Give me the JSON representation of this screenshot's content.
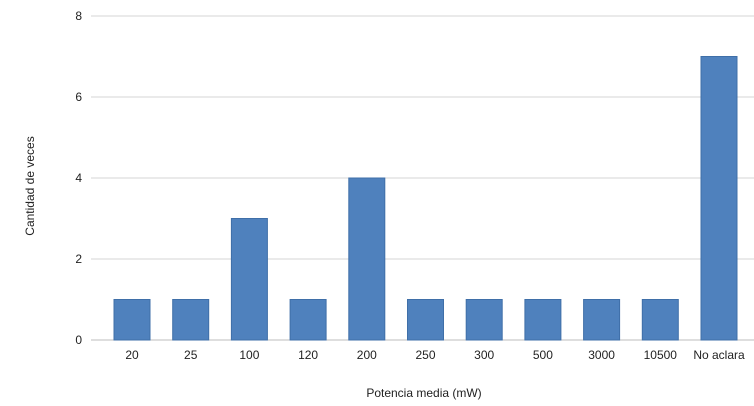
{
  "chart_data": {
    "type": "bar",
    "categories": [
      "20",
      "25",
      "100",
      "120",
      "200",
      "250",
      "300",
      "500",
      "3000",
      "10500",
      "No aclara"
    ],
    "values": [
      1,
      1,
      3,
      1,
      4,
      1,
      1,
      1,
      1,
      1,
      7
    ],
    "title": "",
    "xlabel": "Potencia media (mW)",
    "ylabel": "Cantidad de veces",
    "ylim": [
      0,
      8
    ],
    "yticks": [
      0,
      2,
      4,
      6,
      8
    ],
    "grid": true,
    "legend": "none",
    "bar_color": "#4f81bd"
  }
}
